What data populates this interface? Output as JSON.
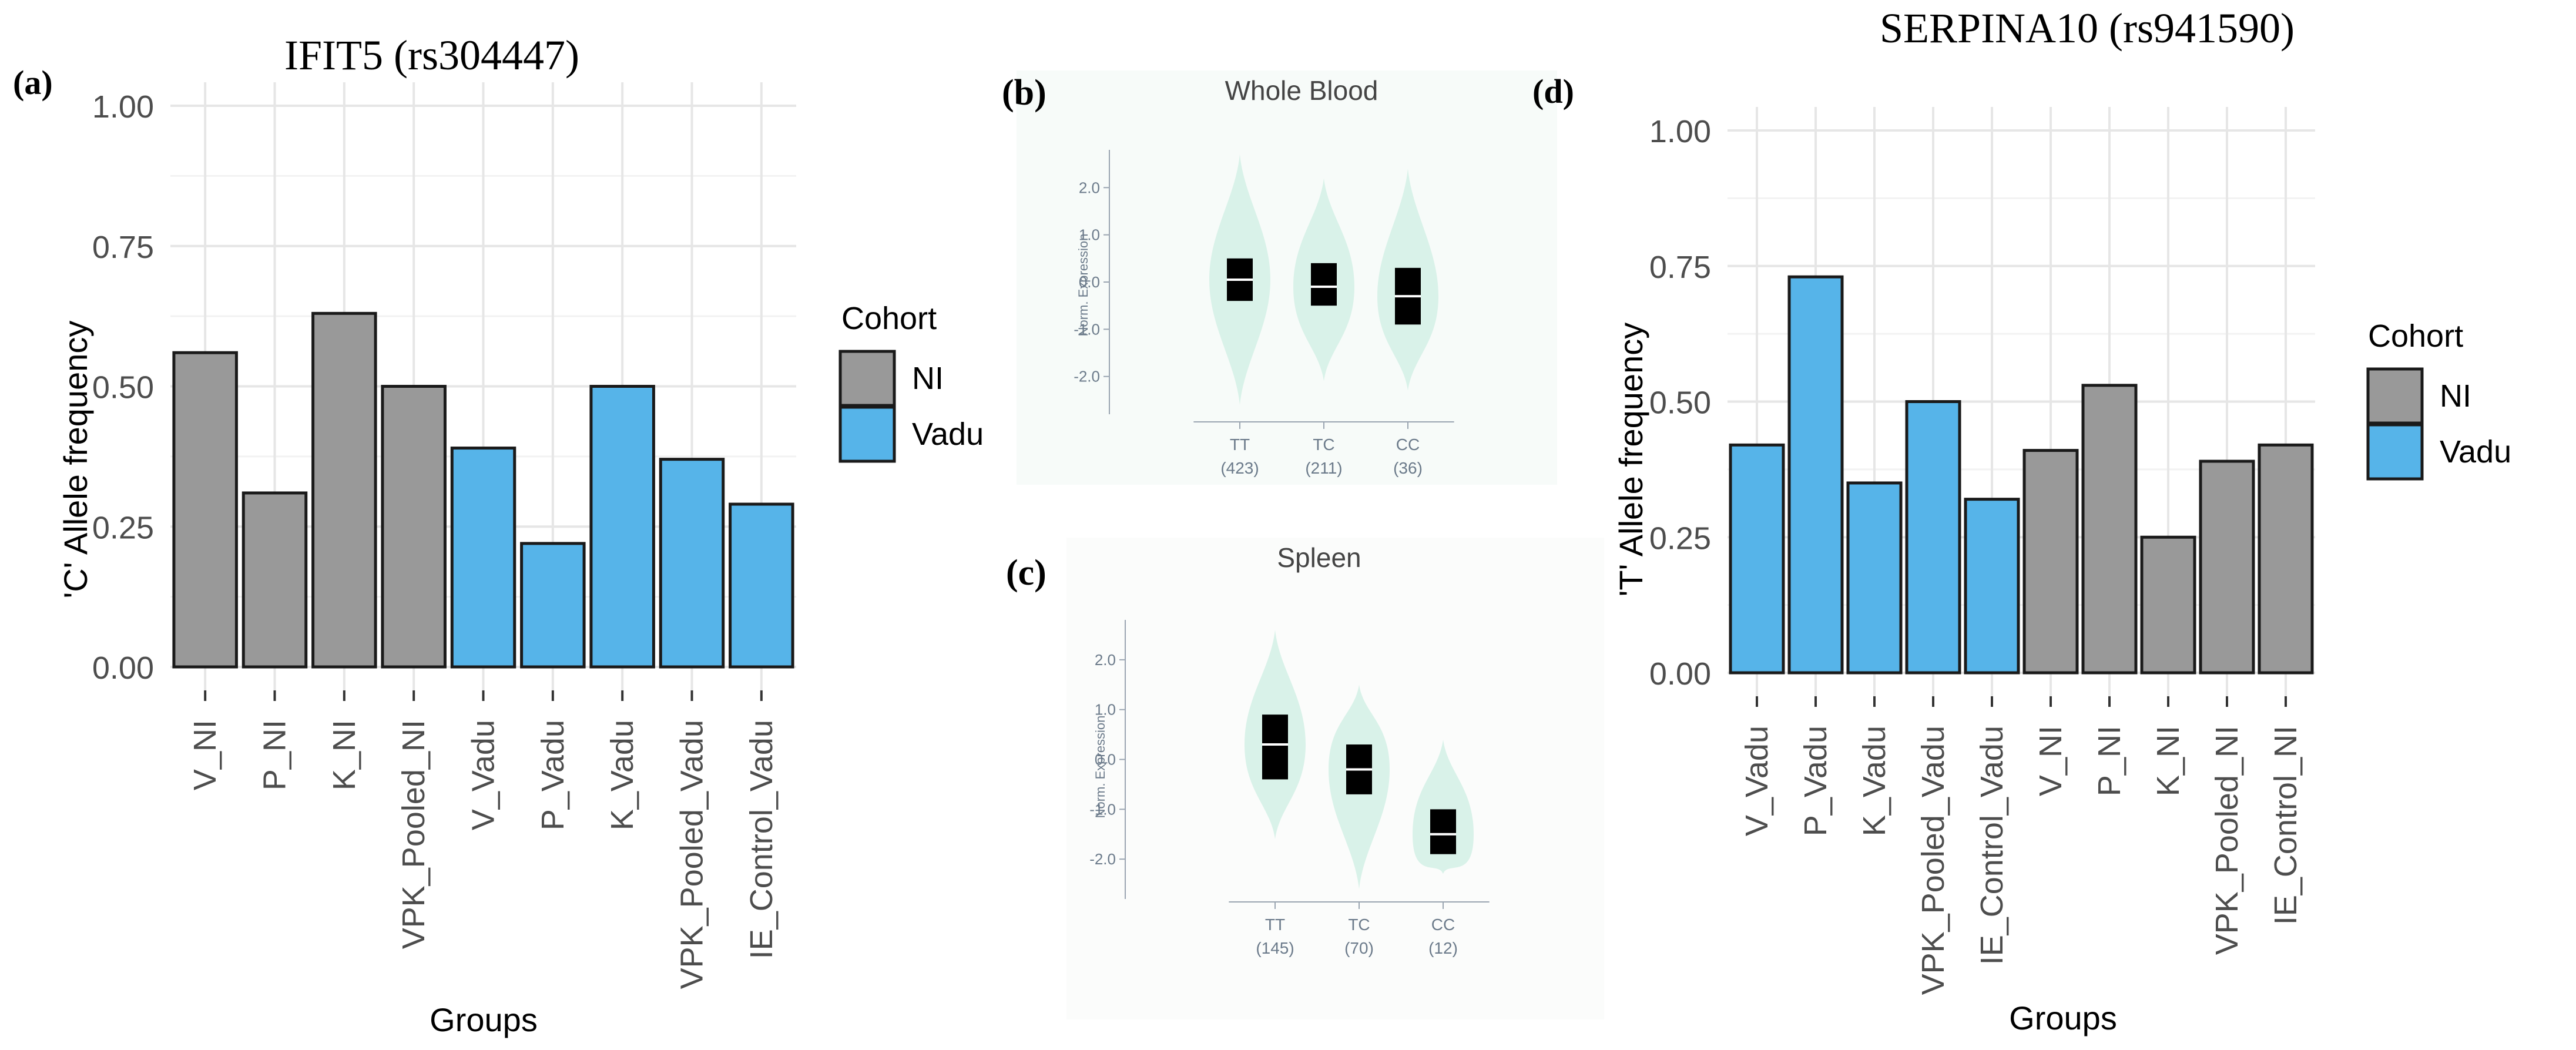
{
  "colors": {
    "ni": "#999999",
    "vadu": "#56B4E9",
    "violin": "#d9f2e9",
    "grid": "#e6e6e6",
    "axis_text": "#4d4d4d",
    "gtex_text": "#6b7a8a"
  },
  "chart_data": [
    {
      "id": "a",
      "panel_label": "(a)",
      "type": "bar",
      "title": "IFIT5 (rs304447)",
      "xlabel": "Groups",
      "ylabel": "'C' Allele frequency",
      "ylim": [
        0,
        1.0
      ],
      "yticks": [
        "0.00",
        "0.25",
        "0.50",
        "0.75",
        "1.00"
      ],
      "grid": true,
      "legend": {
        "title": "Cohort",
        "position": "right",
        "entries": [
          "NI",
          "Vadu"
        ]
      },
      "categories": [
        "V_NI",
        "P_NI",
        "K_NI",
        "VPK_Pooled_NI",
        "V_Vadu",
        "P_Vadu",
        "K_Vadu",
        "VPK_Pooled_Vadu",
        "IE_Control_Vadu"
      ],
      "cohort": [
        "NI",
        "NI",
        "NI",
        "NI",
        "Vadu",
        "Vadu",
        "Vadu",
        "Vadu",
        "Vadu"
      ],
      "values": [
        0.56,
        0.31,
        0.63,
        0.5,
        0.39,
        0.22,
        0.5,
        0.37,
        0.29
      ]
    },
    {
      "id": "b",
      "panel_label": "(b)",
      "type": "violin",
      "title": "Whole Blood",
      "ylabel": "Norm. Expression",
      "ylim": [
        -2.8,
        2.8
      ],
      "yticks": [
        "2.0",
        "1.0",
        "0.0",
        "-1.0",
        "-2.0"
      ],
      "categories": [
        "TT",
        "TC",
        "CC"
      ],
      "counts": [
        "(423)",
        "(211)",
        "(36)"
      ],
      "median": [
        0.05,
        -0.1,
        -0.3
      ],
      "q1": [
        -0.4,
        -0.5,
        -0.9
      ],
      "q3": [
        0.5,
        0.4,
        0.3
      ],
      "min": [
        -2.6,
        -2.1,
        -2.3
      ],
      "max": [
        2.7,
        2.2,
        2.4
      ]
    },
    {
      "id": "c",
      "panel_label": "(c)",
      "type": "violin",
      "title": "Spleen",
      "ylabel": "Norm. Expression",
      "ylim": [
        -2.8,
        2.8
      ],
      "yticks": [
        "2.0",
        "1.0",
        "0.0",
        "-1.0",
        "-2.0"
      ],
      "categories": [
        "TT",
        "TC",
        "CC"
      ],
      "counts": [
        "(145)",
        "(70)",
        "(12)"
      ],
      "median": [
        0.3,
        -0.2,
        -1.5
      ],
      "q1": [
        -0.4,
        -0.7,
        -1.9
      ],
      "q3": [
        0.9,
        0.3,
        -1.0
      ],
      "min": [
        -1.6,
        -2.6,
        -2.3
      ],
      "max": [
        2.6,
        1.5,
        0.4
      ]
    },
    {
      "id": "d",
      "panel_label": "(d)",
      "type": "bar",
      "title": "SERPINA10 (rs941590)",
      "xlabel": "Groups",
      "ylabel": "'T' Allele frequency",
      "ylim": [
        0,
        1.0
      ],
      "yticks": [
        "0.00",
        "0.25",
        "0.50",
        "0.75",
        "1.00"
      ],
      "grid": true,
      "legend": {
        "title": "Cohort",
        "position": "right",
        "entries": [
          "NI",
          "Vadu"
        ]
      },
      "categories": [
        "V_Vadu",
        "P_Vadu",
        "K_Vadu",
        "VPK_Pooled_Vadu",
        "IE_Control_Vadu",
        "V_NI",
        "P_NI",
        "K_NI",
        "VPK_Pooled_NI",
        "IE_Control_NI"
      ],
      "cohort": [
        "Vadu",
        "Vadu",
        "Vadu",
        "Vadu",
        "Vadu",
        "NI",
        "NI",
        "NI",
        "NI",
        "NI"
      ],
      "values": [
        0.42,
        0.73,
        0.35,
        0.5,
        0.32,
        0.41,
        0.53,
        0.25,
        0.39,
        0.42
      ]
    }
  ]
}
